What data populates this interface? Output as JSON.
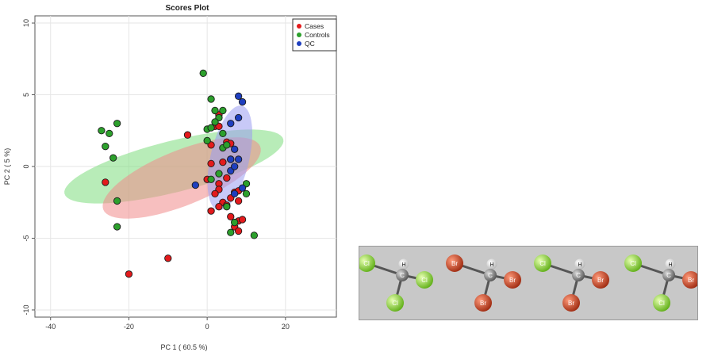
{
  "chart_data": {
    "type": "scatter",
    "title": "Scores Plot",
    "xlabel": "PC 1 ( 60.5 %)",
    "ylabel": "PC 2 ( 5 %)",
    "xlim": [
      -44,
      33
    ],
    "ylim": [
      -10.5,
      10.5
    ],
    "xticks": [
      -40,
      -20,
      0,
      20
    ],
    "yticks": [
      -10,
      -5,
      0,
      5,
      10
    ],
    "grid": true,
    "legend": "top-right",
    "series": [
      {
        "name": "Cases",
        "color": "#e31a1c",
        "points": [
          [
            -20,
            -7.5
          ],
          [
            -10,
            -6.4
          ],
          [
            -26,
            -1.1
          ],
          [
            -5,
            2.2
          ],
          [
            2,
            2.8
          ],
          [
            3,
            2.8
          ],
          [
            3,
            3.6
          ],
          [
            1,
            1.5
          ],
          [
            5,
            1.7
          ],
          [
            6,
            1.6
          ],
          [
            4,
            0.3
          ],
          [
            5,
            -0.8
          ],
          [
            3,
            -1.2
          ],
          [
            1,
            0.2
          ],
          [
            0,
            -0.9
          ],
          [
            3,
            -1.6
          ],
          [
            2,
            -1.9
          ],
          [
            7,
            -1.8
          ],
          [
            8,
            -1.7
          ],
          [
            6,
            -2.2
          ],
          [
            4,
            -2.5
          ],
          [
            8,
            -2.4
          ],
          [
            3,
            -2.8
          ],
          [
            1,
            -3.1
          ],
          [
            6,
            -3.5
          ],
          [
            8,
            -3.8
          ],
          [
            9,
            -3.7
          ],
          [
            7,
            -4.2
          ],
          [
            8,
            -4.5
          ],
          [
            5,
            -2.7
          ]
        ]
      },
      {
        "name": "Controls",
        "color": "#2ca02c",
        "points": [
          [
            -27,
            2.5
          ],
          [
            -25,
            2.3
          ],
          [
            -23,
            3.0
          ],
          [
            -26,
            1.4
          ],
          [
            -24,
            0.6
          ],
          [
            -23,
            -2.4
          ],
          [
            -23,
            -4.2
          ],
          [
            -1,
            6.5
          ],
          [
            1,
            4.7
          ],
          [
            2,
            3.9
          ],
          [
            4,
            3.9
          ],
          [
            3,
            3.4
          ],
          [
            0,
            2.6
          ],
          [
            2,
            3.1
          ],
          [
            1,
            2.7
          ],
          [
            0,
            1.8
          ],
          [
            4,
            1.3
          ],
          [
            5,
            1.5
          ],
          [
            6,
            0.5
          ],
          [
            1,
            -0.9
          ],
          [
            5,
            -2.8
          ],
          [
            10,
            -1.9
          ],
          [
            10,
            -1.2
          ],
          [
            7,
            -3.9
          ],
          [
            6,
            -4.6
          ],
          [
            12,
            -4.8
          ],
          [
            3,
            -0.5
          ],
          [
            4,
            2.3
          ]
        ]
      },
      {
        "name": "QC",
        "color": "#1f3fbf",
        "points": [
          [
            8,
            4.9
          ],
          [
            9,
            4.5
          ],
          [
            8,
            3.4
          ],
          [
            6,
            3.0
          ],
          [
            7,
            1.2
          ],
          [
            6,
            0.5
          ],
          [
            8,
            0.5
          ],
          [
            6,
            -0.3
          ],
          [
            7,
            0.0
          ],
          [
            -3,
            -1.3
          ],
          [
            9,
            -1.5
          ],
          [
            7,
            -1.9
          ]
        ]
      }
    ],
    "ellipses": [
      {
        "series": "Controls",
        "color": "#7ddc7d",
        "cx": -8.5,
        "cy": 0.0,
        "rx": 32,
        "ry": 7.3,
        "angle_deg": 14
      },
      {
        "series": "Cases",
        "color": "#f08a8a",
        "cx": -6.5,
        "cy": -0.8,
        "rx": 24,
        "ry": 7.8,
        "angle_deg": 22
      },
      {
        "series": "QC",
        "color": "#9a9cf0",
        "cx": 5.8,
        "cy": 0.6,
        "rx": 15.2,
        "ry": 5.5,
        "angle_deg": 77
      }
    ]
  },
  "molecules": [
    {
      "atoms": {
        "top_left": "Cl",
        "top_right": "H",
        "center": "C",
        "right": "Cl",
        "bottom": "Cl"
      }
    },
    {
      "atoms": {
        "top_left": "Br",
        "top_right": "H",
        "center": "C",
        "right": "Br",
        "bottom": "Br"
      }
    },
    {
      "atoms": {
        "top_left": "Cl",
        "top_right": "H",
        "center": "C",
        "right": "Br",
        "bottom": "Br"
      }
    },
    {
      "atoms": {
        "top_left": "Cl",
        "top_right": "H",
        "center": "C",
        "right": "Br",
        "bottom": "Cl"
      }
    }
  ],
  "atom_colors": {
    "Cl": "#7ed321",
    "Br": "#c0391b",
    "H": "#f0f0f0",
    "C": "#8c8c8c"
  }
}
